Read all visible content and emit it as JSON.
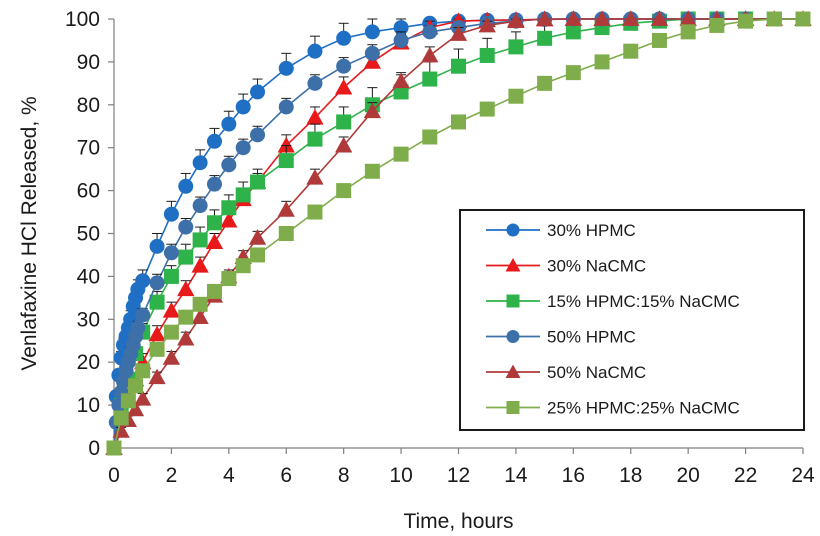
{
  "chart_data": {
    "type": "line",
    "xlabel": "Time, hours",
    "ylabel": "Venlafaxine HCl Released, %",
    "xlim": [
      0,
      24
    ],
    "ylim": [
      0,
      100
    ],
    "x_ticks": [
      0,
      2,
      4,
      6,
      8,
      10,
      12,
      14,
      16,
      18,
      20,
      22,
      24
    ],
    "y_ticks": [
      0,
      10,
      20,
      30,
      40,
      50,
      60,
      70,
      80,
      90,
      100
    ],
    "grid": false,
    "legend_position": "center-right",
    "series": [
      {
        "name": "30% HPMC",
        "marker": "circle",
        "color": "#1f6fc4",
        "x": [
          0,
          0.08,
          0.17,
          0.25,
          0.33,
          0.42,
          0.5,
          0.58,
          0.67,
          0.75,
          0.83,
          1,
          1.5,
          2,
          2.5,
          3,
          3.5,
          4,
          4.5,
          5,
          6,
          7,
          8,
          9,
          10,
          11,
          12,
          13,
          14,
          15,
          16,
          17,
          18,
          19,
          20,
          21,
          22,
          23,
          24
        ],
        "y": [
          0,
          12,
          17,
          21,
          24,
          26,
          28,
          30,
          33,
          35,
          37,
          39,
          47,
          54.5,
          61,
          66.5,
          71.5,
          75.5,
          79.5,
          83,
          88.5,
          92.5,
          95.5,
          97,
          98,
          99,
          99.5,
          99.7,
          99.8,
          99.9,
          100,
          100,
          100,
          100,
          100,
          100,
          100,
          100,
          100
        ],
        "err": [
          0,
          1,
          1.2,
          1.5,
          1.5,
          1.8,
          2,
          2,
          2,
          2.2,
          2.2,
          2.5,
          3,
          3,
          3,
          3,
          3,
          3,
          3,
          3,
          3.5,
          3.5,
          3.5,
          3,
          2,
          1.5,
          1,
          1,
          1,
          1,
          1,
          1,
          1,
          1,
          1,
          1,
          1,
          1,
          1
        ]
      },
      {
        "name": "30% NaCMC",
        "marker": "triangle",
        "color": "#e8191b",
        "x": [
          0,
          0.25,
          0.5,
          0.75,
          1,
          1.5,
          2,
          2.5,
          3,
          3.5,
          4,
          4.5,
          5,
          6,
          7,
          8,
          9,
          10,
          11,
          12,
          13,
          14,
          15,
          16,
          17,
          18,
          19,
          20,
          21,
          22,
          23,
          24
        ],
        "y": [
          0,
          7,
          12,
          16,
          20,
          26.5,
          32,
          37,
          42.5,
          48,
          53,
          58,
          62,
          70.5,
          77,
          84,
          90,
          94.5,
          98,
          99.5,
          99.7,
          99.8,
          99.9,
          100,
          100,
          100,
          100,
          100,
          100,
          100,
          100,
          100
        ],
        "err": [
          0,
          1,
          1.5,
          1.5,
          2,
          2,
          2,
          2,
          2,
          2,
          2,
          2,
          2,
          2.5,
          2.5,
          2.5,
          2.5,
          2,
          1.5,
          1,
          1,
          1,
          1,
          1,
          1,
          1,
          1,
          1,
          1,
          1,
          1,
          1
        ]
      },
      {
        "name": "15% HPMC:15% NaCMC",
        "marker": "square",
        "color": "#2db34a",
        "x": [
          0,
          0.25,
          0.5,
          0.75,
          1,
          1.5,
          2,
          2.5,
          3,
          3.5,
          4,
          4.5,
          5,
          6,
          7,
          8,
          9,
          10,
          11,
          12,
          13,
          14,
          15,
          16,
          17,
          18,
          19,
          20,
          21,
          22,
          23,
          24
        ],
        "y": [
          0,
          10,
          16,
          22,
          27,
          34,
          40,
          44.5,
          48.5,
          52.5,
          56,
          59,
          62,
          67,
          72,
          76,
          80,
          83,
          86,
          89,
          91.5,
          93.5,
          95.5,
          97,
          98,
          99,
          99.5,
          100,
          100,
          100,
          100,
          100
        ],
        "err": [
          0,
          1.5,
          2,
          2,
          2,
          2.5,
          2.5,
          3,
          3,
          3,
          3,
          3,
          3,
          3.5,
          3.5,
          3.5,
          4,
          4,
          4,
          4,
          4,
          3.5,
          3,
          2.5,
          2,
          1.5,
          1,
          1,
          1,
          1,
          1,
          1
        ]
      },
      {
        "name": "50% HPMC",
        "marker": "circle",
        "color": "#3d6fa8",
        "x": [
          0,
          0.08,
          0.17,
          0.25,
          0.33,
          0.42,
          0.5,
          0.58,
          0.67,
          0.75,
          0.83,
          1,
          1.5,
          2,
          2.5,
          3,
          3.5,
          4,
          4.5,
          5,
          6,
          7,
          8,
          9,
          10,
          11,
          12,
          13,
          14,
          15,
          16,
          17,
          18,
          19,
          20,
          21,
          22,
          23,
          24
        ],
        "y": [
          0,
          6,
          10,
          13,
          15.5,
          18,
          20,
          22,
          24,
          26,
          28,
          31,
          38.5,
          45.5,
          51.5,
          56.5,
          61.5,
          66,
          70,
          73,
          79.5,
          85,
          89,
          92,
          95,
          97,
          98,
          99,
          99.5,
          100,
          100,
          100,
          100,
          100,
          100,
          100,
          100,
          100,
          100
        ],
        "err": [
          0,
          1,
          1,
          1,
          1.2,
          1.2,
          1.5,
          1.5,
          1.5,
          1.5,
          1.5,
          1.5,
          2,
          2,
          2,
          2,
          2,
          2,
          2,
          2,
          2,
          2,
          2,
          2,
          2,
          1.5,
          1,
          1,
          1,
          1,
          1,
          1,
          1,
          1,
          1,
          1,
          1,
          1,
          1
        ]
      },
      {
        "name": "50% NaCMC",
        "marker": "triangle",
        "color": "#b03a3a",
        "x": [
          0,
          0.25,
          0.5,
          0.75,
          1,
          1.5,
          2,
          2.5,
          3,
          3.5,
          4,
          4.5,
          5,
          6,
          7,
          8,
          9,
          10,
          11,
          12,
          13,
          14,
          15,
          16,
          17,
          18,
          19,
          20,
          21,
          22,
          23,
          24
        ],
        "y": [
          0,
          4,
          6.5,
          9,
          11.5,
          16.5,
          21,
          25.5,
          30.5,
          35.5,
          40,
          44.5,
          49,
          55.5,
          63,
          70.5,
          78.5,
          85.5,
          91.5,
          96.5,
          98.5,
          99.5,
          100,
          100,
          100,
          100,
          100,
          100,
          100,
          100,
          100,
          100
        ],
        "err": [
          0,
          0.8,
          1,
          1,
          1.2,
          1.2,
          1.5,
          1.5,
          1.5,
          1.5,
          1.5,
          1.5,
          1.5,
          2,
          2,
          2,
          2,
          2,
          2,
          1.5,
          1,
          1,
          1,
          1,
          1,
          1,
          1,
          1,
          1,
          1,
          1,
          1
        ]
      },
      {
        "name": "25% HPMC:25% NaCMC",
        "marker": "square",
        "color": "#80ad4c",
        "x": [
          0,
          0.25,
          0.5,
          0.75,
          1,
          1.5,
          2,
          2.5,
          3,
          3.5,
          4,
          4.5,
          5,
          6,
          7,
          8,
          9,
          10,
          11,
          12,
          13,
          14,
          15,
          16,
          17,
          18,
          19,
          20,
          21,
          22,
          23,
          24
        ],
        "y": [
          0,
          7,
          11,
          14.5,
          18,
          23,
          27,
          30.5,
          33.5,
          36.5,
          39.5,
          42.5,
          45,
          50,
          55,
          60,
          64.5,
          68.5,
          72.5,
          76,
          79,
          82,
          85,
          87.5,
          90,
          92.5,
          95,
          97,
          98.5,
          99.5,
          100,
          100
        ],
        "err": [
          0,
          0.8,
          1,
          1,
          1,
          1.2,
          1.2,
          1.2,
          1.2,
          1.2,
          1.2,
          1.2,
          1.2,
          1.2,
          1.2,
          1.2,
          1.2,
          1.2,
          1.2,
          1.2,
          1.2,
          1.2,
          1.2,
          1.2,
          1.2,
          1.2,
          1.2,
          1.2,
          1.2,
          1.2,
          1.2,
          1.2
        ]
      }
    ]
  }
}
